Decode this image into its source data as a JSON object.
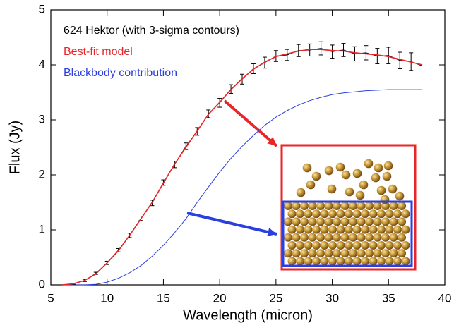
{
  "chart_data": {
    "type": "line",
    "xlabel": "Wavelength (micron)",
    "ylabel": "Flux (Jy)",
    "x": [
      6,
      7,
      8,
      9,
      10,
      11,
      12,
      13,
      14,
      15,
      16,
      17,
      18,
      19,
      20,
      21,
      22,
      23,
      24,
      25,
      26,
      27,
      28,
      29,
      30,
      31,
      32,
      33,
      34,
      35,
      36,
      37,
      38
    ],
    "series": [
      {
        "name": "624 Hektor (with 3-sigma contours)",
        "color": "#000000",
        "values": [
          0.0,
          0.02,
          0.08,
          0.21,
          0.4,
          0.63,
          0.9,
          1.21,
          1.49,
          1.86,
          2.19,
          2.52,
          2.79,
          3.11,
          3.31,
          3.56,
          3.74,
          3.93,
          4.04,
          4.16,
          4.18,
          4.26,
          4.27,
          4.3,
          4.24,
          4.27,
          4.2,
          4.22,
          4.16,
          4.17,
          4.08,
          4.06,
          3.98
        ],
        "errors": [
          0.01,
          0.01,
          0.02,
          0.02,
          0.03,
          0.03,
          0.04,
          0.04,
          0.05,
          0.05,
          0.06,
          0.06,
          0.07,
          0.07,
          0.08,
          0.08,
          0.09,
          0.09,
          0.1,
          0.1,
          0.1,
          0.11,
          0.11,
          0.12,
          0.12,
          0.12,
          0.13,
          0.13,
          0.14,
          0.15,
          0.15,
          0.16,
          0.16
        ]
      },
      {
        "name": "Best-fit model",
        "color": "#e8262a",
        "values": [
          0.0,
          0.02,
          0.08,
          0.2,
          0.4,
          0.62,
          0.9,
          1.2,
          1.5,
          1.85,
          2.2,
          2.5,
          2.8,
          3.1,
          3.32,
          3.55,
          3.75,
          3.92,
          4.05,
          4.15,
          4.2,
          4.25,
          4.28,
          4.28,
          4.26,
          4.25,
          4.22,
          4.2,
          4.18,
          4.15,
          4.1,
          4.05,
          4.0
        ]
      },
      {
        "name": "Blackbody contribution",
        "color": "#2b3fe0",
        "values": [
          0.0,
          0.0,
          0.0,
          0.01,
          0.05,
          0.12,
          0.22,
          0.35,
          0.52,
          0.72,
          0.95,
          1.2,
          1.5,
          1.78,
          2.05,
          2.3,
          2.52,
          2.72,
          2.9,
          3.05,
          3.17,
          3.27,
          3.35,
          3.41,
          3.46,
          3.49,
          3.51,
          3.53,
          3.54,
          3.55,
          3.55,
          3.55,
          3.55
        ]
      }
    ],
    "xlim": [
      5,
      40
    ],
    "xticks": [
      5,
      10,
      15,
      20,
      25,
      30,
      35,
      40
    ],
    "ylim": [
      0,
      5
    ],
    "yticks": [
      0,
      1,
      2,
      3,
      4,
      5
    ]
  }
}
